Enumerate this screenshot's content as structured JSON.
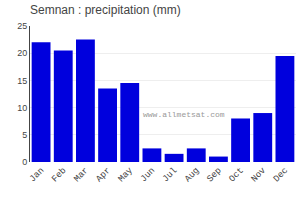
{
  "chart_data": {
    "type": "bar",
    "title": "Semnan : precipitation (mm)",
    "categories": [
      "Jan",
      "Feb",
      "Mar",
      "Apr",
      "May",
      "Jun",
      "Jul",
      "Aug",
      "Sep",
      "Oct",
      "Nov",
      "Dec"
    ],
    "values": [
      22,
      20.5,
      22.5,
      13.5,
      14.5,
      2.5,
      1.5,
      2.5,
      1.0,
      8.0,
      9.0,
      19.5
    ],
    "color": "#0000dd",
    "ylim": [
      0,
      25
    ],
    "yticks": [
      0,
      5,
      10,
      15,
      20,
      25
    ],
    "grid": true,
    "annotations": [
      "www.allmetsat.com"
    ]
  }
}
